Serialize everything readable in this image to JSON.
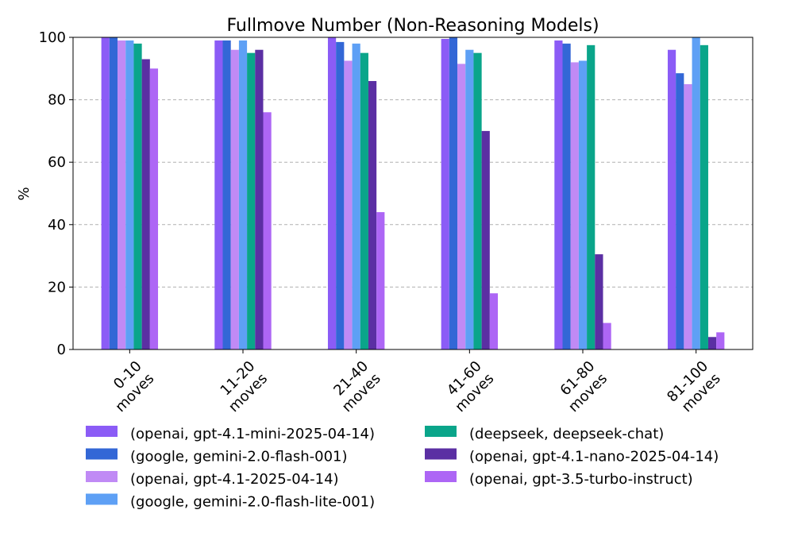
{
  "chart_data": {
    "type": "bar",
    "title": "Fullmove Number (Non-Reasoning Models)",
    "xlabel": "",
    "ylabel": "%",
    "ylim": [
      0,
      100
    ],
    "yticks": [
      0,
      20,
      40,
      60,
      80,
      100
    ],
    "grid": "y-dashed",
    "legend_placement": "bottom",
    "categories": [
      [
        "0-10",
        "moves"
      ],
      [
        "11-20",
        "moves"
      ],
      [
        "21-40",
        "moves"
      ],
      [
        "41-60",
        "moves"
      ],
      [
        "61-80",
        "moves"
      ],
      [
        "81-100",
        "moves"
      ]
    ],
    "series": [
      {
        "name": "(openai, gpt-4.1-mini-2025-04-14)",
        "color": "#8b5cf6",
        "values": [
          100,
          99,
          100,
          99.5,
          99,
          96
        ]
      },
      {
        "name": "(google, gemini-2.0-flash-001)",
        "color": "#3367d6",
        "values": [
          100,
          99,
          98.5,
          100,
          98,
          88.5
        ]
      },
      {
        "name": "(openai, gpt-4.1-2025-04-14)",
        "color": "#c08af5",
        "values": [
          99,
          96,
          92.5,
          91.5,
          92,
          85
        ]
      },
      {
        "name": "(google, gemini-2.0-flash-lite-001)",
        "color": "#5ea0f5",
        "values": [
          99,
          99,
          98,
          96,
          92.5,
          100
        ]
      },
      {
        "name": "(deepseek, deepseek-chat)",
        "color": "#0aa58a",
        "values": [
          98,
          95,
          95,
          95,
          97.5,
          97.5
        ]
      },
      {
        "name": "(openai, gpt-4.1-nano-2025-04-14)",
        "color": "#5b2fa3",
        "values": [
          93,
          96,
          86,
          70,
          30.5,
          4
        ]
      },
      {
        "name": "(openai, gpt-3.5-turbo-instruct)",
        "color": "#ad66f5",
        "values": [
          90,
          76,
          44,
          18,
          8.5,
          5.5
        ]
      }
    ]
  }
}
